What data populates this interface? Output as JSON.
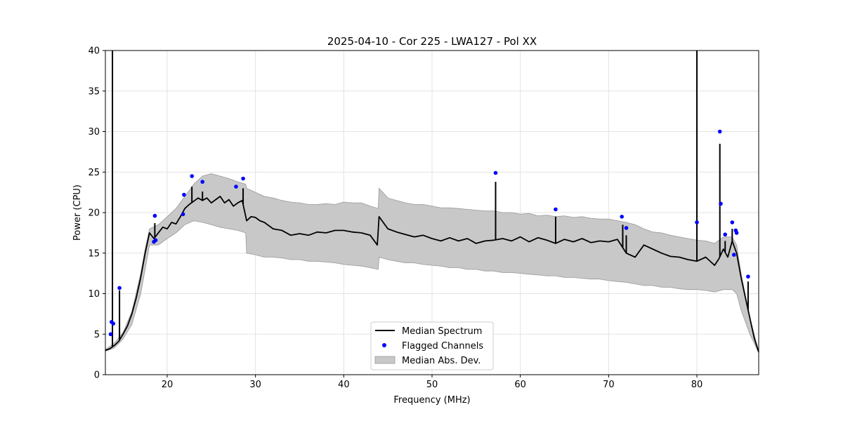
{
  "chart_data": {
    "type": "line",
    "title": "2025-04-10 - Cor 225 - LWA127 - Pol XX",
    "xlabel": "Frequency (MHz)",
    "ylabel": "Power (CPU)",
    "xlim": [
      13,
      87
    ],
    "ylim": [
      0,
      40
    ],
    "x_ticks": [
      20,
      30,
      40,
      50,
      60,
      70,
      80
    ],
    "x_tick_labels": [
      "20",
      "30",
      "40",
      "50",
      "60",
      "70",
      "80"
    ],
    "y_ticks": [
      0,
      5,
      10,
      15,
      20,
      25,
      30,
      35,
      40
    ],
    "y_tick_labels": [
      "0",
      "5",
      "10",
      "15",
      "20",
      "25",
      "30",
      "35",
      "40"
    ],
    "grid": true,
    "legend_position": "bottom-center",
    "legend": [
      {
        "label": "Median Spectrum",
        "kind": "line",
        "color": "#000000"
      },
      {
        "label": "Flagged Channels",
        "kind": "marker",
        "color": "#0000ff"
      },
      {
        "label": "Median Abs. Dev.",
        "kind": "band",
        "color": "#c8c8c8"
      }
    ],
    "series": [
      {
        "name": "Median Spectrum",
        "color": "#000000",
        "x": [
          13.0,
          13.5,
          14.0,
          14.5,
          15.0,
          15.5,
          16.0,
          16.5,
          17.0,
          17.5,
          18.0,
          18.5,
          19.0,
          19.5,
          20.0,
          20.5,
          21.0,
          21.5,
          22.0,
          22.5,
          23.0,
          23.5,
          24.0,
          24.5,
          25.0,
          25.5,
          26.0,
          26.5,
          27.0,
          27.5,
          28.0,
          28.5,
          29.0,
          29.5,
          30.0,
          30.5,
          31.0,
          32.0,
          33.0,
          34.0,
          35.0,
          36.0,
          37.0,
          38.0,
          39.0,
          40.0,
          41.0,
          42.0,
          43.0,
          43.8,
          44.0,
          45.0,
          46.0,
          47.0,
          48.0,
          49.0,
          50.0,
          51.0,
          52.0,
          53.0,
          54.0,
          55.0,
          56.0,
          57.0,
          58.0,
          59.0,
          60.0,
          61.0,
          62.0,
          63.0,
          64.0,
          65.0,
          66.0,
          67.0,
          68.0,
          69.0,
          70.0,
          71.0,
          72.0,
          73.0,
          74.0,
          75.0,
          76.0,
          77.0,
          78.0,
          79.0,
          80.0,
          81.0,
          82.0,
          82.5,
          83.0,
          83.5,
          84.0,
          84.5,
          85.0,
          85.5,
          86.0,
          86.5,
          87.0
        ],
        "values": [
          3.0,
          3.2,
          3.6,
          4.1,
          5.0,
          6.0,
          7.5,
          9.5,
          12.0,
          15.0,
          17.5,
          16.8,
          17.5,
          18.2,
          18.0,
          18.8,
          18.6,
          19.5,
          20.5,
          21.0,
          21.4,
          21.8,
          21.5,
          21.8,
          21.2,
          21.6,
          22.0,
          21.2,
          21.6,
          20.8,
          21.2,
          21.5,
          19.0,
          19.5,
          19.4,
          19.0,
          18.8,
          18.0,
          17.8,
          17.2,
          17.4,
          17.2,
          17.6,
          17.5,
          17.8,
          17.8,
          17.6,
          17.5,
          17.2,
          16.0,
          19.5,
          18.0,
          17.6,
          17.3,
          17.0,
          17.2,
          16.8,
          16.5,
          16.9,
          16.5,
          16.8,
          16.2,
          16.5,
          16.6,
          16.8,
          16.5,
          17.0,
          16.4,
          16.9,
          16.6,
          16.2,
          16.7,
          16.4,
          16.8,
          16.3,
          16.5,
          16.4,
          16.7,
          15.0,
          14.5,
          16.0,
          15.5,
          15.0,
          14.6,
          14.5,
          14.2,
          14.0,
          14.5,
          13.5,
          14.3,
          15.5,
          14.5,
          16.5,
          15.0,
          12.0,
          9.5,
          7.0,
          4.5,
          2.8
        ],
        "spikes": [
          [
            13.8,
            40.0
          ],
          [
            14.6,
            10.4
          ],
          [
            18.6,
            18.7
          ],
          [
            22.8,
            23.2
          ],
          [
            24.0,
            22.6
          ],
          [
            28.6,
            23.0
          ],
          [
            57.2,
            23.8
          ],
          [
            64.0,
            19.5
          ],
          [
            71.6,
            18.5
          ],
          [
            72.0,
            17.2
          ],
          [
            80.0,
            40.0
          ],
          [
            82.6,
            28.5
          ],
          [
            83.2,
            16.5
          ],
          [
            84.0,
            18.0
          ],
          [
            85.8,
            11.5
          ]
        ]
      },
      {
        "name": "Median Abs. Dev.",
        "color": "#c8c8c8",
        "x": [
          13.0,
          14.0,
          15.0,
          16.0,
          17.0,
          17.5,
          18.0,
          19.0,
          20.0,
          21.0,
          22.0,
          23.0,
          24.0,
          25.0,
          26.0,
          27.0,
          28.0,
          28.9,
          29.0,
          30.0,
          31.0,
          32.0,
          33.0,
          34.0,
          35.0,
          36.0,
          37.0,
          38.0,
          39.0,
          40.0,
          41.0,
          42.0,
          43.0,
          43.9,
          44.0,
          45.0,
          46.0,
          47.0,
          48.0,
          49.0,
          50.0,
          51.0,
          52.0,
          53.0,
          54.0,
          55.0,
          56.0,
          57.0,
          58.0,
          59.0,
          60.0,
          61.0,
          62.0,
          63.0,
          64.0,
          65.0,
          66.0,
          67.0,
          68.0,
          69.0,
          70.0,
          71.0,
          72.0,
          73.0,
          74.0,
          75.0,
          76.0,
          77.0,
          78.0,
          79.0,
          80.0,
          81.0,
          82.0,
          83.0,
          84.0,
          84.5,
          85.0,
          86.0,
          87.0
        ],
        "upper": [
          3.1,
          3.9,
          5.2,
          7.8,
          12.5,
          15.5,
          18.0,
          18.5,
          19.5,
          20.5,
          22.0,
          23.5,
          24.5,
          24.8,
          24.5,
          24.2,
          23.8,
          23.5,
          23.0,
          22.5,
          22.0,
          21.8,
          21.5,
          21.3,
          21.2,
          21.0,
          21.0,
          21.1,
          21.0,
          21.3,
          21.2,
          21.2,
          20.8,
          20.5,
          23.0,
          21.8,
          21.5,
          21.2,
          21.0,
          21.0,
          20.8,
          20.6,
          20.6,
          20.5,
          20.4,
          20.3,
          20.2,
          20.2,
          20.0,
          20.0,
          19.8,
          19.9,
          19.6,
          19.7,
          19.5,
          19.6,
          19.4,
          19.5,
          19.3,
          19.2,
          19.2,
          19.0,
          18.8,
          18.5,
          18.0,
          17.6,
          17.5,
          17.2,
          17.0,
          16.8,
          16.6,
          16.5,
          16.2,
          17.0,
          17.0,
          16.0,
          12.5,
          7.0,
          2.9
        ],
        "lower": [
          2.9,
          3.3,
          4.4,
          6.2,
          10.0,
          13.0,
          16.0,
          16.0,
          16.8,
          17.5,
          18.5,
          19.0,
          18.8,
          18.5,
          18.2,
          18.0,
          17.8,
          17.5,
          15.0,
          14.8,
          14.5,
          14.5,
          14.4,
          14.2,
          14.2,
          14.0,
          14.0,
          13.9,
          13.8,
          13.6,
          13.5,
          13.4,
          13.2,
          13.0,
          14.5,
          14.2,
          14.0,
          13.8,
          13.8,
          13.6,
          13.5,
          13.4,
          13.2,
          13.2,
          13.0,
          13.0,
          12.8,
          12.8,
          12.6,
          12.6,
          12.5,
          12.4,
          12.3,
          12.2,
          12.2,
          12.0,
          12.0,
          11.9,
          11.8,
          11.8,
          11.6,
          11.5,
          11.4,
          11.2,
          11.0,
          11.0,
          10.8,
          10.8,
          10.6,
          10.5,
          10.5,
          10.4,
          10.2,
          10.5,
          10.5,
          10.0,
          8.0,
          5.0,
          2.7
        ]
      },
      {
        "name": "Flagged Channels",
        "color": "#0000ff",
        "x": [
          13.6,
          13.7,
          13.9,
          14.6,
          18.5,
          18.6,
          18.7,
          21.8,
          21.9,
          22.8,
          24.0,
          27.8,
          28.6,
          57.2,
          64.0,
          71.5,
          72.0,
          80.0,
          82.6,
          82.7,
          83.2,
          84.0,
          84.2,
          84.4,
          84.5,
          85.8
        ],
        "values": [
          5.0,
          6.5,
          6.3,
          10.7,
          16.4,
          19.6,
          16.6,
          19.8,
          22.2,
          24.5,
          23.8,
          23.2,
          24.2,
          24.9,
          20.4,
          19.5,
          18.1,
          18.8,
          30.0,
          21.1,
          17.3,
          18.8,
          14.8,
          17.8,
          17.5,
          12.1
        ]
      }
    ]
  }
}
